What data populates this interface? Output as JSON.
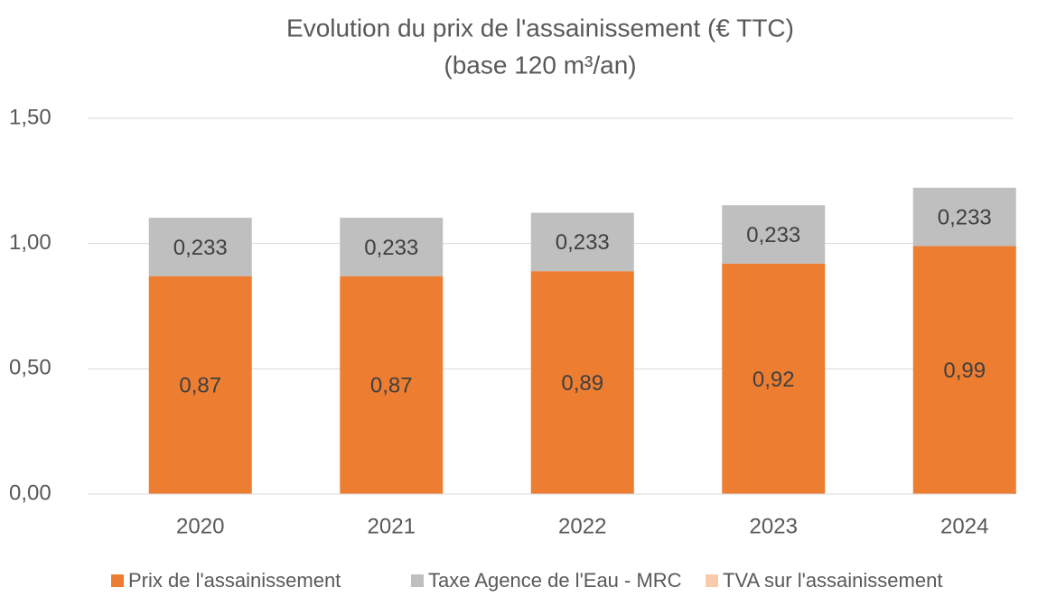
{
  "chart_data": {
    "type": "stacked-bar",
    "title": "Evolution du prix de l'assainissement (€ TTC)",
    "subtitle": "(base 120 m³/an)",
    "categories": [
      "2020",
      "2021",
      "2022",
      "2023",
      "2024"
    ],
    "series": [
      {
        "name": "Prix de l'assainissement",
        "color": "#ed7d31",
        "values": [
          0.87,
          0.87,
          0.89,
          0.92,
          0.99
        ],
        "value_labels": [
          "0,87",
          "0,87",
          "0,89",
          "0,92",
          "0,99"
        ]
      },
      {
        "name": "Taxe Agence de l'Eau - MRC",
        "color": "#bfbfbf",
        "values": [
          0.233,
          0.233,
          0.233,
          0.233,
          0.233
        ],
        "value_labels": [
          "0,233",
          "0,233",
          "0,233",
          "0,233",
          "0,233"
        ]
      },
      {
        "name": "TVA sur l'assainissement",
        "color": "#f8cbad",
        "values": [
          0,
          0,
          0,
          0,
          0
        ]
      }
    ],
    "ylim": [
      0,
      1.5
    ],
    "yticks": [
      {
        "value": 0,
        "label": "0,00"
      },
      {
        "value": 0.5,
        "label": "0,50"
      },
      {
        "value": 1,
        "label": "1,00"
      },
      {
        "value": 1.5,
        "label": "1,50"
      }
    ],
    "grid": true,
    "legend": "bottom"
  }
}
